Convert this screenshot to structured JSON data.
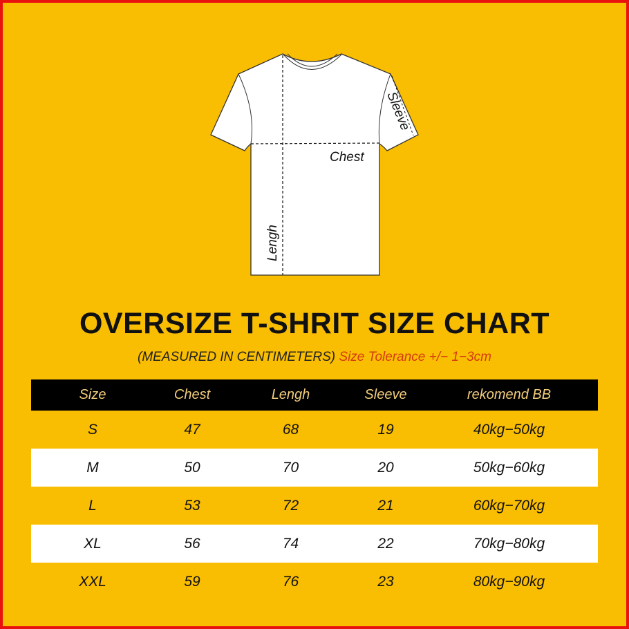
{
  "diagram": {
    "labels": {
      "sleeve": "Sleeve",
      "chest": "Chest",
      "length": "Lengh"
    }
  },
  "title": "OVERSIZE T-SHRIT SIZE CHART",
  "subtitle": {
    "measured": "(MEASURED IN CENTIMETERS)",
    "tolerance": "Size Tolerance +/− 1−3cm"
  },
  "colors": {
    "background": "#f9bd02",
    "border": "#e8130f",
    "header_bg": "#000000",
    "header_text": "#f3cd7c",
    "tolerance_text": "#d53a10"
  },
  "table": {
    "headers": [
      "Size",
      "Chest",
      "Lengh",
      "Sleeve",
      "rekomend BB"
    ],
    "rows": [
      [
        "S",
        "47",
        "68",
        "19",
        "40kg−50kg"
      ],
      [
        "M",
        "50",
        "70",
        "20",
        "50kg−60kg"
      ],
      [
        "L",
        "53",
        "72",
        "21",
        "60kg−70kg"
      ],
      [
        "XL",
        "56",
        "74",
        "22",
        "70kg−80kg"
      ],
      [
        "XXL",
        "59",
        "76",
        "23",
        "80kg−90kg"
      ]
    ]
  }
}
